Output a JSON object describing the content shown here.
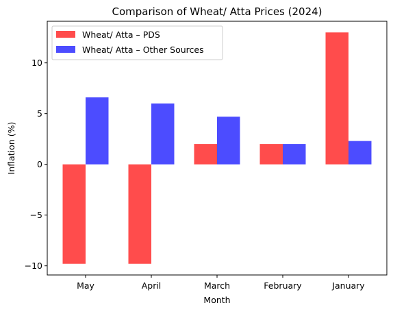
{
  "chart_data": {
    "type": "bar",
    "title": "Comparison of Wheat/ Atta Prices (2024)",
    "xlabel": "Month",
    "ylabel": "Inflation (%)",
    "categories": [
      "May",
      "April",
      "March",
      "February",
      "January"
    ],
    "series": [
      {
        "name": "Wheat/ Atta – PDS",
        "color": "#ff4c4c",
        "values": [
          -9.8,
          -9.8,
          2.0,
          2.0,
          13.0
        ]
      },
      {
        "name": "Wheat/ Atta – Other Sources",
        "color": "#4c4cff",
        "values": [
          6.6,
          6.0,
          4.7,
          2.0,
          2.3
        ]
      }
    ],
    "ylim": [
      -10.9,
      14.1
    ],
    "yticks": [
      -10,
      -5,
      0,
      5,
      10
    ],
    "ytick_labels": [
      "−10",
      "−5",
      "0",
      "5",
      "10"
    ],
    "grid": false,
    "legend_position": "top-left"
  }
}
